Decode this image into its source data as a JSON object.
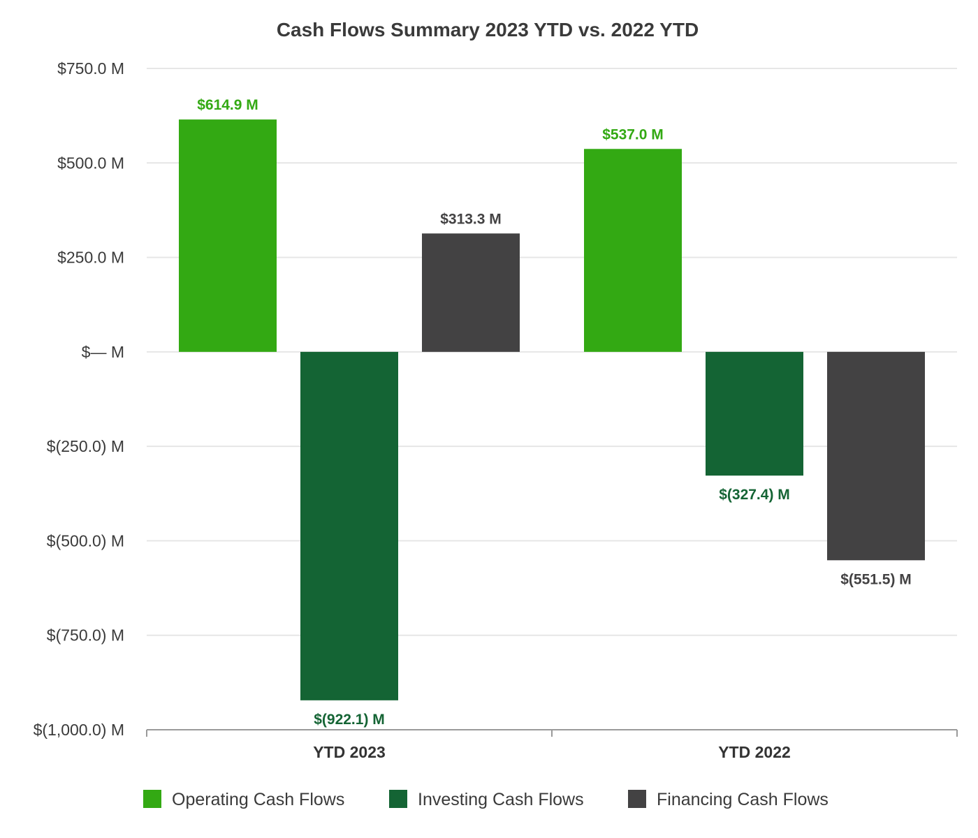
{
  "chart_data": {
    "type": "bar",
    "title": "Cash Flows Summary 2023 YTD vs. 2022 YTD",
    "xlabel": "",
    "ylabel": "",
    "categories": [
      "YTD 2023",
      "YTD 2022"
    ],
    "series": [
      {
        "name": "Operating Cash Flows",
        "color": "#33a913",
        "values": [
          614.9,
          537.0
        ],
        "labels": [
          "$614.9 M",
          "$537.0 M"
        ]
      },
      {
        "name": "Investing Cash Flows",
        "color": "#146434",
        "values": [
          -922.1,
          -327.4
        ],
        "labels": [
          "$(922.1) M",
          "$(327.4) M"
        ]
      },
      {
        "name": "Financing Cash Flows",
        "color": "#434243",
        "values": [
          313.3,
          -551.5
        ],
        "labels": [
          "$313.3 M",
          "$(551.5) M"
        ]
      }
    ],
    "ylim": [
      -1000,
      750
    ],
    "yticks": [
      {
        "value": 750,
        "label": "$750.0 M"
      },
      {
        "value": 500,
        "label": "$500.0 M"
      },
      {
        "value": 250,
        "label": "$250.0 M"
      },
      {
        "value": 0,
        "label": "$— M"
      },
      {
        "value": -250,
        "label": "$(250.0) M"
      },
      {
        "value": -500,
        "label": "$(500.0) M"
      },
      {
        "value": -750,
        "label": "$(750.0) M"
      },
      {
        "value": -1000,
        "label": "$(1,000.0) M"
      }
    ],
    "grid": true,
    "legend_position": "bottom"
  }
}
